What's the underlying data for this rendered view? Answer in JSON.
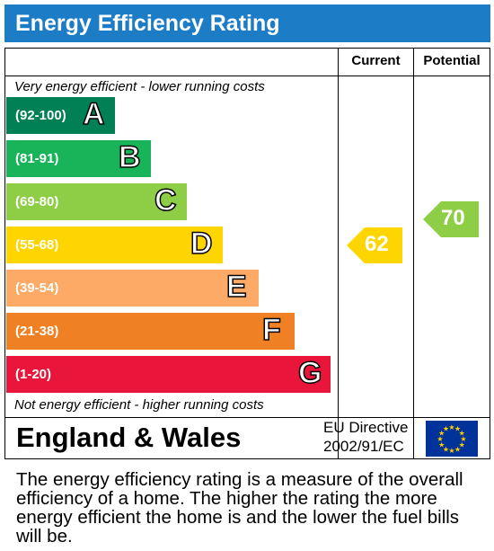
{
  "title": "Energy Efficiency Rating",
  "headers": {
    "current": "Current",
    "potential": "Potential"
  },
  "notes": {
    "top": "Very energy efficient - lower running costs",
    "bottom": "Not energy efficient - higher running costs"
  },
  "chart_data": {
    "type": "bar",
    "bands": [
      {
        "letter": "A",
        "range": "(92-100)",
        "color": "#008054"
      },
      {
        "letter": "B",
        "range": "(81-91)",
        "color": "#19b459"
      },
      {
        "letter": "C",
        "range": "(69-80)",
        "color": "#8dce46"
      },
      {
        "letter": "D",
        "range": "(55-68)",
        "color": "#ffd500"
      },
      {
        "letter": "E",
        "range": "(39-54)",
        "color": "#fcaa65"
      },
      {
        "letter": "F",
        "range": "(21-38)",
        "color": "#ef8023"
      },
      {
        "letter": "G",
        "range": "(1-20)",
        "color": "#e9153b"
      }
    ],
    "current": {
      "value": 62,
      "band": "D",
      "color": "#ffd500"
    },
    "potential": {
      "value": 70,
      "band": "C",
      "color": "#8dce46"
    }
  },
  "footer": {
    "region": "England & Wales",
    "directive_line1": "EU Directive",
    "directive_line2": "2002/91/EC"
  },
  "description": "The energy efficiency rating is a measure of the overall efficiency of a home. The higher the rating the more energy efficient the home is and the lower the fuel bills will be."
}
